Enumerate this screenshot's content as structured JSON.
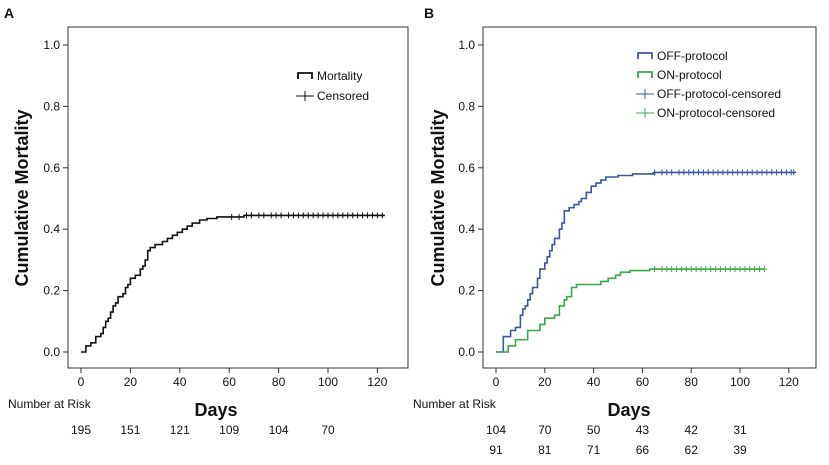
{
  "chart_data": [
    {
      "type": "line",
      "panel_label": "A",
      "ylabel": "Cumulative Mortality",
      "xlabel": "Days",
      "xlim": [
        0,
        125
      ],
      "ylim": [
        0,
        1.0
      ],
      "x_ticks": [
        0,
        20,
        40,
        60,
        80,
        100,
        120
      ],
      "y_ticks": [
        0.0,
        0.2,
        0.4,
        0.6,
        0.8,
        1.0
      ],
      "x_tick_labels": [
        "0",
        "20",
        "40",
        "60",
        "80",
        "100",
        "120"
      ],
      "y_tick_labels": [
        "0.0",
        "0.2",
        "0.4",
        "0.6",
        "0.8",
        "1.0"
      ],
      "legend": [
        {
          "label": "Mortality",
          "kind": "step",
          "color": "#111111"
        },
        {
          "label": "Censored",
          "kind": "plus",
          "color": "#111111"
        }
      ],
      "series": [
        {
          "name": "Mortality",
          "color": "#111111",
          "steps": [
            [
              0,
              0
            ],
            [
              2,
              0.02
            ],
            [
              4,
              0.03
            ],
            [
              6,
              0.05
            ],
            [
              8,
              0.06
            ],
            [
              9,
              0.08
            ],
            [
              10,
              0.1
            ],
            [
              11,
              0.11
            ],
            [
              12,
              0.13
            ],
            [
              13,
              0.15
            ],
            [
              14,
              0.16
            ],
            [
              15,
              0.18
            ],
            [
              17,
              0.19
            ],
            [
              18,
              0.21
            ],
            [
              19,
              0.22
            ],
            [
              20,
              0.24
            ],
            [
              22,
              0.25
            ],
            [
              24,
              0.27
            ],
            [
              25,
              0.28
            ],
            [
              26,
              0.3
            ],
            [
              27,
              0.33
            ],
            [
              28,
              0.34
            ],
            [
              30,
              0.35
            ],
            [
              33,
              0.36
            ],
            [
              35,
              0.37
            ],
            [
              37,
              0.38
            ],
            [
              39,
              0.39
            ],
            [
              41,
              0.4
            ],
            [
              43,
              0.41
            ],
            [
              45,
              0.42
            ],
            [
              48,
              0.43
            ],
            [
              51,
              0.435
            ],
            [
              55,
              0.44
            ],
            [
              61,
              0.44
            ],
            [
              66,
              0.445
            ],
            [
              123,
              0.445
            ]
          ],
          "censor_x": [
            61,
            64,
            67,
            69,
            72,
            74,
            77,
            79,
            81,
            84,
            86,
            88,
            90,
            92,
            94,
            96,
            98,
            100,
            102,
            104,
            106,
            108,
            110,
            112,
            114,
            116,
            118,
            120,
            122
          ]
        }
      ],
      "risk_table": {
        "title": "Number at Risk",
        "rows": [
          {
            "values": [
              "195",
              "151",
              "121",
              "109",
              "104",
              "70"
            ]
          }
        ]
      }
    },
    {
      "type": "line",
      "panel_label": "B",
      "ylabel": "Cumulative Mortality",
      "xlabel": "Days",
      "xlim": [
        0,
        125
      ],
      "ylim": [
        0,
        1.0
      ],
      "x_ticks": [
        0,
        20,
        40,
        60,
        80,
        100,
        120
      ],
      "y_ticks": [
        0.0,
        0.2,
        0.4,
        0.6,
        0.8,
        1.0
      ],
      "x_tick_labels": [
        "0",
        "20",
        "40",
        "60",
        "80",
        "100",
        "120"
      ],
      "y_tick_labels": [
        "0.0",
        "0.2",
        "0.4",
        "0.6",
        "0.8",
        "1.0"
      ],
      "legend": [
        {
          "label": "OFF-protocol",
          "kind": "step",
          "color": "#3a55a8"
        },
        {
          "label": "ON-protocol",
          "kind": "step",
          "color": "#3aa84a"
        },
        {
          "label": "OFF-protocol-censored",
          "kind": "plus",
          "color": "#3a55a8"
        },
        {
          "label": "ON-protocol-censored",
          "kind": "plus",
          "color": "#3aa84a"
        }
      ],
      "series": [
        {
          "name": "OFF-protocol",
          "color": "#3a55a8",
          "steps": [
            [
              0,
              0
            ],
            [
              3,
              0.05
            ],
            [
              6,
              0.07
            ],
            [
              8,
              0.08
            ],
            [
              10,
              0.12
            ],
            [
              11,
              0.14
            ],
            [
              12,
              0.15
            ],
            [
              13,
              0.17
            ],
            [
              14,
              0.19
            ],
            [
              15,
              0.21
            ],
            [
              17,
              0.24
            ],
            [
              18,
              0.27
            ],
            [
              20,
              0.29
            ],
            [
              21,
              0.31
            ],
            [
              22,
              0.33
            ],
            [
              23,
              0.35
            ],
            [
              24,
              0.37
            ],
            [
              26,
              0.4
            ],
            [
              27,
              0.42
            ],
            [
              28,
              0.46
            ],
            [
              30,
              0.47
            ],
            [
              32,
              0.48
            ],
            [
              34,
              0.49
            ],
            [
              35,
              0.5
            ],
            [
              37,
              0.52
            ],
            [
              39,
              0.54
            ],
            [
              41,
              0.55
            ],
            [
              43,
              0.56
            ],
            [
              45,
              0.57
            ],
            [
              50,
              0.575
            ],
            [
              56,
              0.58
            ],
            [
              65,
              0.585
            ],
            [
              123,
              0.585
            ]
          ],
          "censor_x": [
            65,
            68,
            70,
            72,
            75,
            77,
            79,
            81,
            83,
            85,
            87,
            89,
            91,
            93,
            95,
            97,
            99,
            101,
            103,
            105,
            107,
            109,
            111,
            113,
            115,
            117,
            119,
            121,
            122
          ]
        },
        {
          "name": "ON-protocol",
          "color": "#3aa84a",
          "steps": [
            [
              0,
              0
            ],
            [
              5,
              0.02
            ],
            [
              8,
              0.04
            ],
            [
              13,
              0.07
            ],
            [
              18,
              0.09
            ],
            [
              20,
              0.11
            ],
            [
              24,
              0.12
            ],
            [
              26,
              0.15
            ],
            [
              28,
              0.17
            ],
            [
              29,
              0.18
            ],
            [
              31,
              0.21
            ],
            [
              33,
              0.22
            ],
            [
              40,
              0.22
            ],
            [
              43,
              0.23
            ],
            [
              46,
              0.24
            ],
            [
              49,
              0.25
            ],
            [
              51,
              0.26
            ],
            [
              55,
              0.265
            ],
            [
              63,
              0.27
            ],
            [
              110,
              0.27
            ]
          ],
          "censor_x": [
            65,
            68,
            70,
            72,
            74,
            76,
            78,
            80,
            82,
            84,
            86,
            88,
            90,
            92,
            94,
            96,
            98,
            100,
            102,
            104,
            106,
            108,
            110
          ]
        }
      ],
      "risk_table": {
        "title": "Number at Risk",
        "rows": [
          {
            "values": [
              "104",
              "70",
              "50",
              "43",
              "42",
              "31"
            ]
          },
          {
            "values": [
              "91",
              "81",
              "71",
              "66",
              "62",
              "39"
            ]
          }
        ]
      }
    }
  ]
}
